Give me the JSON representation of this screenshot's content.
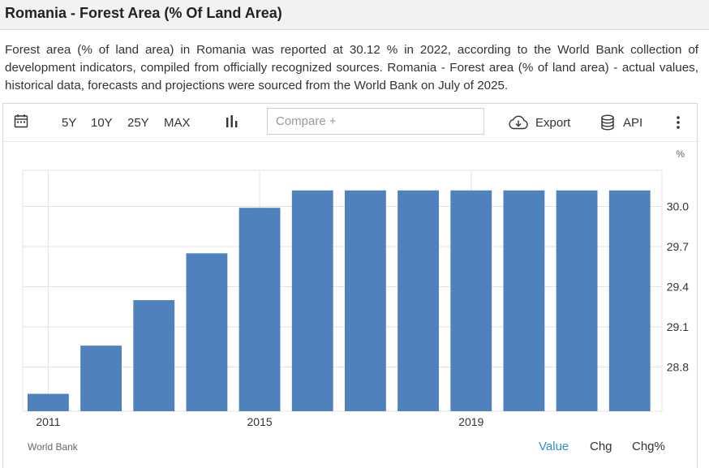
{
  "page": {
    "title": "Romania - Forest Area (% Of Land Area)",
    "description": "Forest area (% of land area) in Romania was reported at 30.12 % in 2022, according to the World Bank collection of development indicators, compiled from officially recognized sources. Romania - Forest area (% of land area) - actual values, historical data, forecasts and projections were sourced from the World Bank on July of 2025."
  },
  "toolbar": {
    "calendar_icon": "calendar-icon",
    "ranges": [
      "5Y",
      "10Y",
      "25Y",
      "MAX"
    ],
    "chart_type_icon": "bar-chart-icon",
    "compare_placeholder": "Compare +",
    "export_label": "Export",
    "export_icon": "cloud-download-icon",
    "api_label": "API",
    "api_icon": "database-icon",
    "more_icon": "vertical-dots-icon"
  },
  "chart_data": {
    "type": "bar",
    "unit": "%",
    "x": [
      2011,
      2012,
      2013,
      2014,
      2015,
      2016,
      2017,
      2018,
      2019,
      2020,
      2021,
      2022
    ],
    "values": [
      28.6,
      28.96,
      29.3,
      29.65,
      29.99,
      30.12,
      30.12,
      30.12,
      30.12,
      30.12,
      30.12,
      30.12
    ],
    "y_ticks": [
      "30.0",
      "29.7",
      "29.4",
      "29.1",
      "28.8"
    ],
    "x_tick_labels": [
      "2011",
      "2015",
      "2019"
    ],
    "ylim": [
      28.47,
      30.27
    ],
    "grid": true,
    "bar_color": "#4f81bd"
  },
  "footer": {
    "source": "World Bank",
    "tabs": [
      "Value",
      "Chg",
      "Chg%"
    ],
    "active_tab": "Value",
    "active_color": "#2a8fd8"
  }
}
